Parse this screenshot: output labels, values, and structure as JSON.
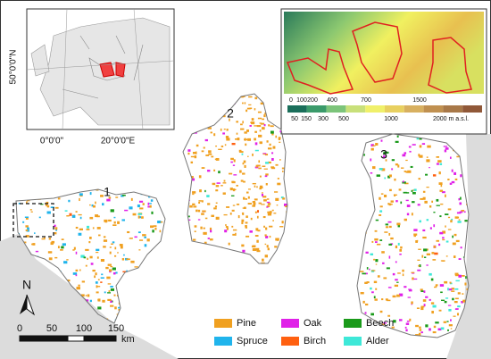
{
  "inset_map": {
    "lat_label": "50°0'0\"N",
    "lon_labels": [
      "0°0'0\"",
      "20°0'0\"E"
    ]
  },
  "elevation_legend": {
    "top_labels": [
      "0",
      "100",
      "200",
      "400",
      "700",
      "1500"
    ],
    "bottom_labels": [
      "50",
      "150",
      "300",
      "500",
      "1000",
      "2000 m a.s.l."
    ],
    "colors": [
      "#1a6e5a",
      "#3a9a6a",
      "#7cc47a",
      "#c8e07a",
      "#f0f06a",
      "#e8d060",
      "#d8b060",
      "#c09050",
      "#a87848",
      "#905838"
    ]
  },
  "regions": [
    {
      "label": "1"
    },
    {
      "label": "2"
    },
    {
      "label": "3"
    }
  ],
  "north": "N",
  "scale_bar": {
    "ticks": [
      0,
      50,
      100,
      150
    ],
    "unit": "km"
  },
  "legend": {
    "items": [
      {
        "name": "Pine",
        "color": "#f0a020"
      },
      {
        "name": "Oak",
        "color": "#e020e8"
      },
      {
        "name": "Beech",
        "color": "#1a9a1a"
      },
      {
        "name": "Spruce",
        "color": "#20b4ec"
      },
      {
        "name": "Birch",
        "color": "#ff6010"
      },
      {
        "name": "Alder",
        "color": "#3ee8d8"
      }
    ]
  }
}
